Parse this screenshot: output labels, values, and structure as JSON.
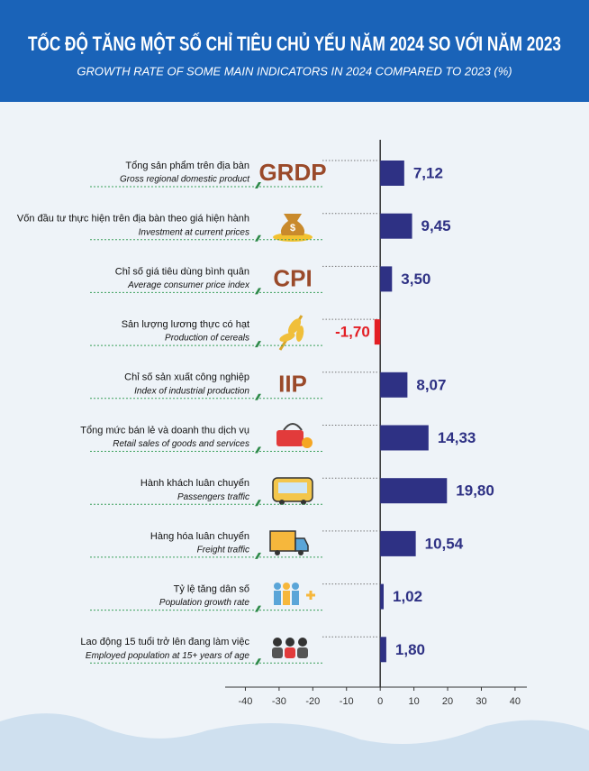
{
  "chart_data": {
    "type": "bar",
    "title": "TỐC ĐỘ TĂNG MỘT SỐ CHỈ TIÊU CHỦ YẾU NĂM 2024 SO VỚI NĂM 2023",
    "subtitle": "GROWTH RATE OF SOME MAIN INDICATORS IN 2024 COMPARED TO 2023 (%)",
    "categories": [
      "Tổng sản phẩm trên địa bàn",
      "Vốn đầu tư thực hiện trên địa bàn theo giá hiện hành",
      "Chỉ số giá tiêu dùng bình quân",
      "Sản lượng lương thực có hạt",
      "Chỉ số sản xuất công nghiệp",
      "Tổng mức bán lẻ và doanh thu dịch vụ",
      "Hành khách luân chuyển",
      "Hàng hóa luân chuyển",
      "Tỷ lệ tăng dân số",
      "Lao động 15 tuổi trở lên đang làm việc"
    ],
    "categories_en": [
      "Gross regional domestic product",
      "Investment at current prices",
      "Average consumer price index",
      "Production of cereals",
      "Index of industrial production",
      "Retail sales of goods and services",
      "Passengers traffic",
      "Freight traffic",
      "Population growth rate",
      "Employed population at 15+ years of age"
    ],
    "icon_labels": [
      "GRDP",
      null,
      "CPI",
      null,
      "IIP",
      null,
      null,
      null,
      null,
      null
    ],
    "values": [
      7.12,
      9.45,
      3.5,
      -1.7,
      8.07,
      14.33,
      19.8,
      10.54,
      1.02,
      1.8
    ],
    "value_labels": [
      "7,12",
      "9,45",
      "3,50",
      "-1,70",
      "8,07",
      "14,33",
      "19,80",
      "10,54",
      "1,02",
      "1,80"
    ],
    "color": "#2e3184",
    "negative_color": "#e31e24",
    "xlim": [
      -46,
      43.5
    ],
    "xticks": [
      -40,
      -30,
      -20,
      -10,
      0,
      10,
      20,
      30,
      40
    ]
  }
}
